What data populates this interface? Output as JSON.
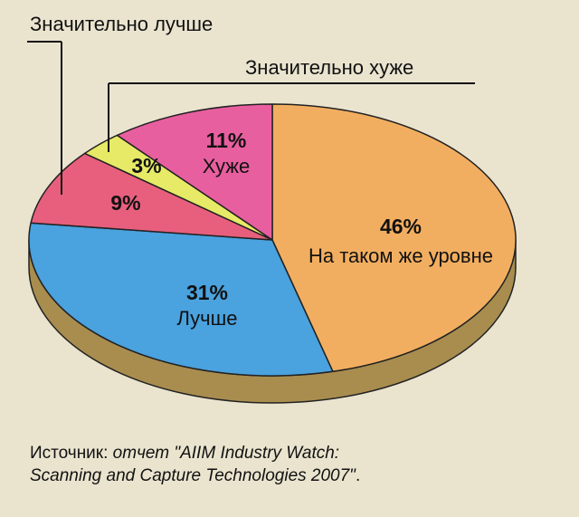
{
  "chart_data": {
    "type": "pie",
    "slices": [
      {
        "label": "На таком же уровне",
        "value": 46,
        "display": "46%",
        "color": "#f2ae60"
      },
      {
        "label": "Лучше",
        "value": 31,
        "display": "31%",
        "color": "#4aa2de"
      },
      {
        "label": "",
        "value": 9,
        "display": "9%",
        "color": "#e85f7e"
      },
      {
        "label": "",
        "value": 3,
        "display": "3%",
        "color": "#e6ea66"
      },
      {
        "label": "Хуже",
        "value": 11,
        "display": "11%",
        "color": "#e85f9f"
      }
    ],
    "callouts": {
      "significantly_better": "Значительно лучше",
      "significantly_worse": "Значительно хуже"
    },
    "side_color": "#a88d4f",
    "outline_color": "#222222"
  },
  "source": {
    "prefix": "Источник: ",
    "line1_italic": "отчет \"AIIM Industry Watch:",
    "line2_italic": "Scanning and Capture Technologies 2007\"",
    "line2_end": "."
  }
}
